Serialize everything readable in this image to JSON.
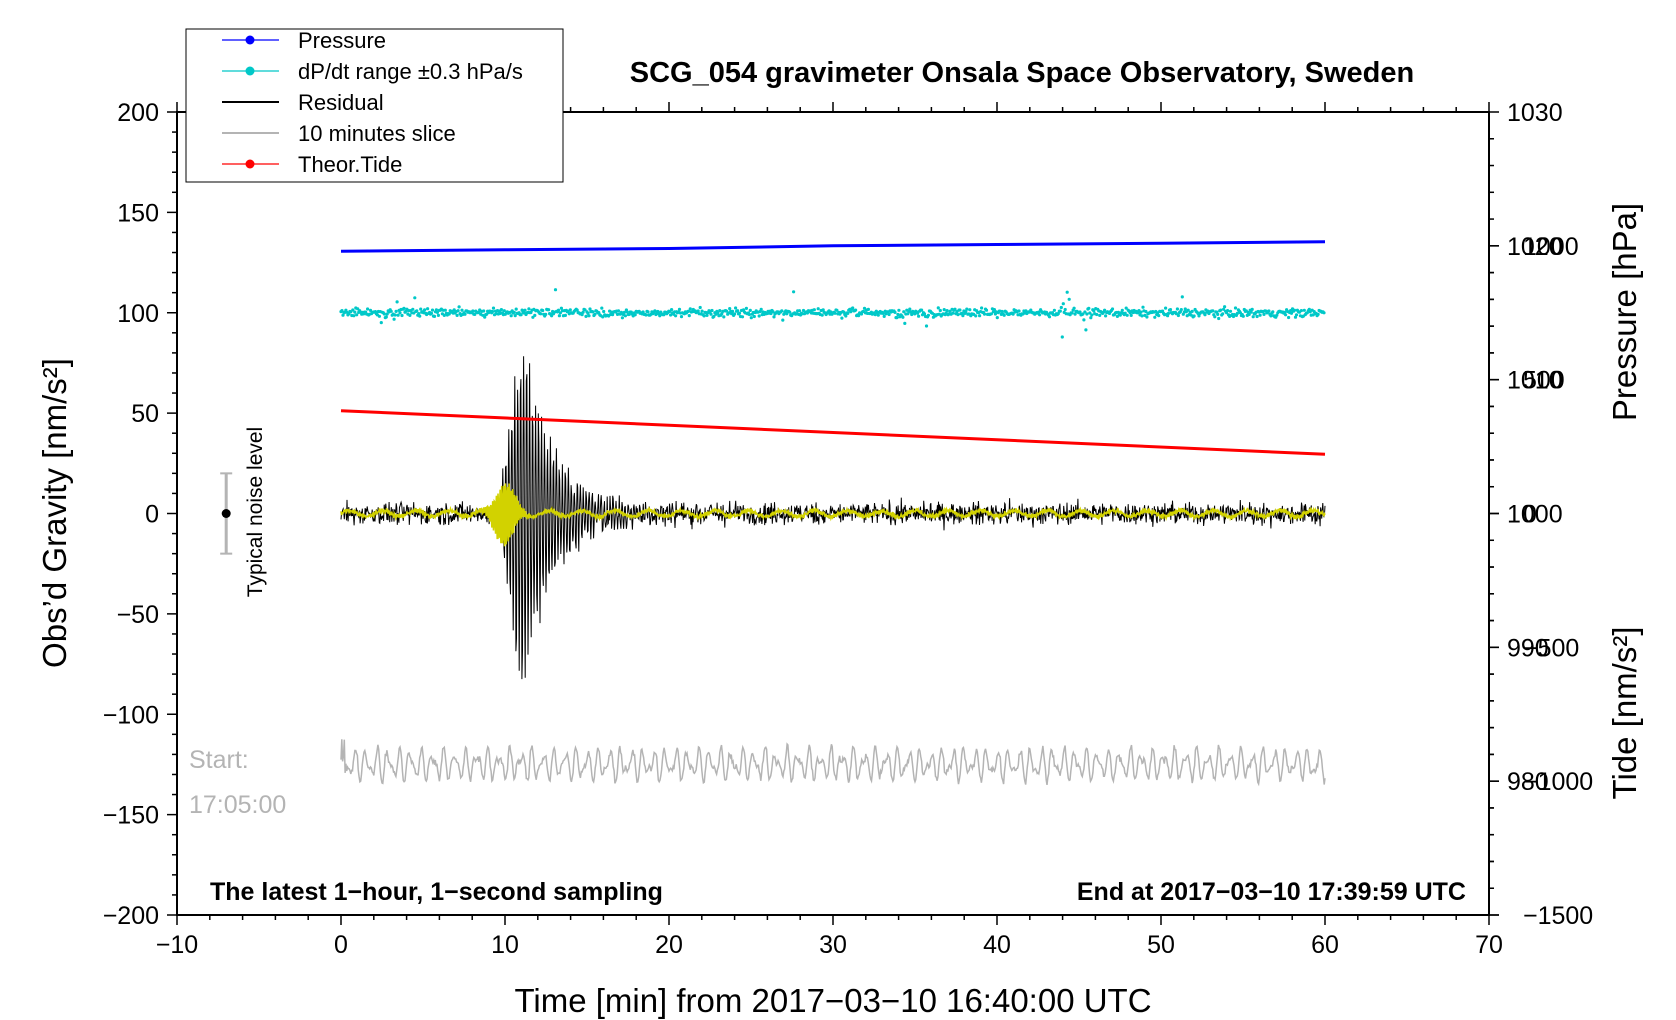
{
  "chart_data": {
    "type": "line",
    "title": "SCG_054 gravimeter Onsala Space Observatory, Sweden",
    "xlabel": "Time [min] from 2017−03−10 16:40:00 UTC",
    "ylabel_left": "Obs’d Gravity [nm/s²]",
    "ylabel_right_upper": "Pressure [hPa]",
    "ylabel_right_lower": "Tide [nm/s²]",
    "xlim": [
      -10,
      70
    ],
    "ylim_left": [
      -200,
      200
    ],
    "ylim_pressure": [
      970,
      1030
    ],
    "ylim_tide": [
      -1500,
      1500
    ],
    "x_ticks": [
      "−10",
      "0",
      "10",
      "20",
      "30",
      "40",
      "50",
      "60",
      "70"
    ],
    "y_ticks_left": [
      "200",
      "150",
      "100",
      "50",
      "0",
      "−50",
      "−100",
      "−150",
      "−200"
    ],
    "pressure_ticks": [
      "1030",
      "1020",
      "1010",
      "1000",
      "990",
      "980"
    ],
    "tide_ticks": [
      "1000",
      "500",
      "0",
      "−500",
      "−1000",
      "−1500"
    ],
    "grid": false,
    "legend_position": "top-left",
    "legend": [
      {
        "label": "Pressure",
        "color": "#0000ff",
        "marker": "dot"
      },
      {
        "label": "dP/dt range ±0.3 hPa/s",
        "color": "#00c8c8",
        "marker": "dot"
      },
      {
        "label": "Residual",
        "color": "#000000",
        "marker": "none"
      },
      {
        "label": "10 minutes slice",
        "color": "#b4b4b4",
        "marker": "none"
      },
      {
        "label": "Theor.Tide",
        "color": "#ff0000",
        "marker": "dot"
      }
    ],
    "series": [
      {
        "name": "Pressure",
        "axis": "pressure",
        "color": "#0000ff",
        "x": [
          0,
          10,
          20,
          30,
          40,
          50,
          60
        ],
        "y": [
          1019.6,
          1019.7,
          1019.8,
          1020.0,
          1020.1,
          1020.2,
          1020.3
        ]
      },
      {
        "name": "dP/dt range ±0.3 hPa/s",
        "axis": "left",
        "color": "#00c8c8",
        "x": [
          0,
          60
        ],
        "y": [
          100,
          100
        ],
        "spread": 3
      },
      {
        "name": "Residual",
        "axis": "left",
        "color": "#000000",
        "x": [
          0,
          60
        ],
        "y": [
          0,
          0
        ],
        "noise": 7,
        "event_x": 11.0,
        "event_peak": 95,
        "event_min": -96
      },
      {
        "name": "Residual (filtered)",
        "axis": "left",
        "color": "#d2d200",
        "x": [
          0,
          60
        ],
        "y": [
          0,
          0
        ]
      },
      {
        "name": "10 minutes slice",
        "axis": "left",
        "color": "#b4b4b4",
        "x": [
          0,
          60
        ],
        "y": [
          -125,
          -125
        ]
      },
      {
        "name": "Theor.Tide",
        "axis": "tide",
        "color": "#ff0000",
        "x": [
          0,
          60
        ],
        "y": [
          384,
          221
        ]
      }
    ],
    "annotations": {
      "bottom_left": "The latest 1−hour, 1−second sampling",
      "bottom_right": "End at 2017−03−10 17:39:59 UTC",
      "slice_start_label": "Start:",
      "slice_start_time": "17:05:00",
      "noise_label": "Typical noise level",
      "noise_level": 20
    }
  }
}
